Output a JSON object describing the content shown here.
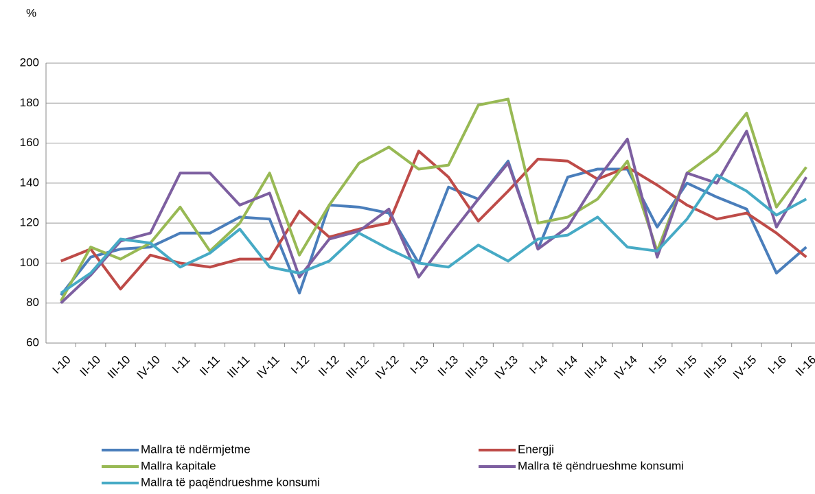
{
  "chart_data": {
    "type": "line",
    "y_unit_label": "%",
    "categories": [
      "I-10",
      "II-10",
      "III-10",
      "IV-10",
      "I-11",
      "II-11",
      "III-11",
      "IV-11",
      "I-12",
      "II-12",
      "III-12",
      "IV-12",
      "I-13",
      "II-13",
      "III-13",
      "IV-13",
      "I-14",
      "II-14",
      "III-14",
      "IV-14",
      "I-15",
      "II-15",
      "III-15",
      "IV-15",
      "I-16",
      "II-16"
    ],
    "series": [
      {
        "name": "Mallra të ndërmjetme",
        "color": "#4a7ebb",
        "values": [
          84,
          103,
          107,
          108,
          115,
          115,
          123,
          122,
          85,
          129,
          128,
          125,
          100,
          138,
          132,
          151,
          107,
          143,
          147,
          147,
          118,
          140,
          133,
          127,
          95,
          108
        ]
      },
      {
        "name": "Energji",
        "color": "#be4b48",
        "values": [
          101,
          107,
          87,
          104,
          100,
          98,
          102,
          102,
          126,
          113,
          117,
          120,
          156,
          143,
          121,
          136,
          152,
          151,
          142,
          148,
          139,
          129,
          122,
          125,
          115,
          103
        ]
      },
      {
        "name": "Mallra kapitale",
        "color": "#98b954",
        "values": [
          81,
          108,
          102,
          110,
          128,
          106,
          120,
          145,
          104,
          129,
          150,
          158,
          147,
          149,
          179,
          182,
          120,
          123,
          132,
          151,
          106,
          145,
          156,
          175,
          128,
          148
        ]
      },
      {
        "name": "Mallra të qëndrueshme konsumi",
        "color": "#7d5fa0",
        "values": [
          80,
          94,
          111,
          115,
          145,
          145,
          129,
          135,
          93,
          112,
          116,
          127,
          93,
          113,
          132,
          150,
          107,
          118,
          142,
          162,
          103,
          145,
          140,
          166,
          118,
          143
        ]
      },
      {
        "name": "Mallra të paqëndrueshme konsumi",
        "color": "#46aac5",
        "values": [
          85,
          95,
          112,
          110,
          98,
          105,
          117,
          98,
          95,
          101,
          115,
          107,
          100,
          98,
          109,
          101,
          112,
          114,
          123,
          108,
          106,
          122,
          144,
          136,
          124,
          132
        ]
      }
    ],
    "ylim": [
      60,
      200
    ],
    "yticks": [
      60,
      80,
      100,
      120,
      140,
      160,
      180,
      200
    ],
    "grid": true
  }
}
